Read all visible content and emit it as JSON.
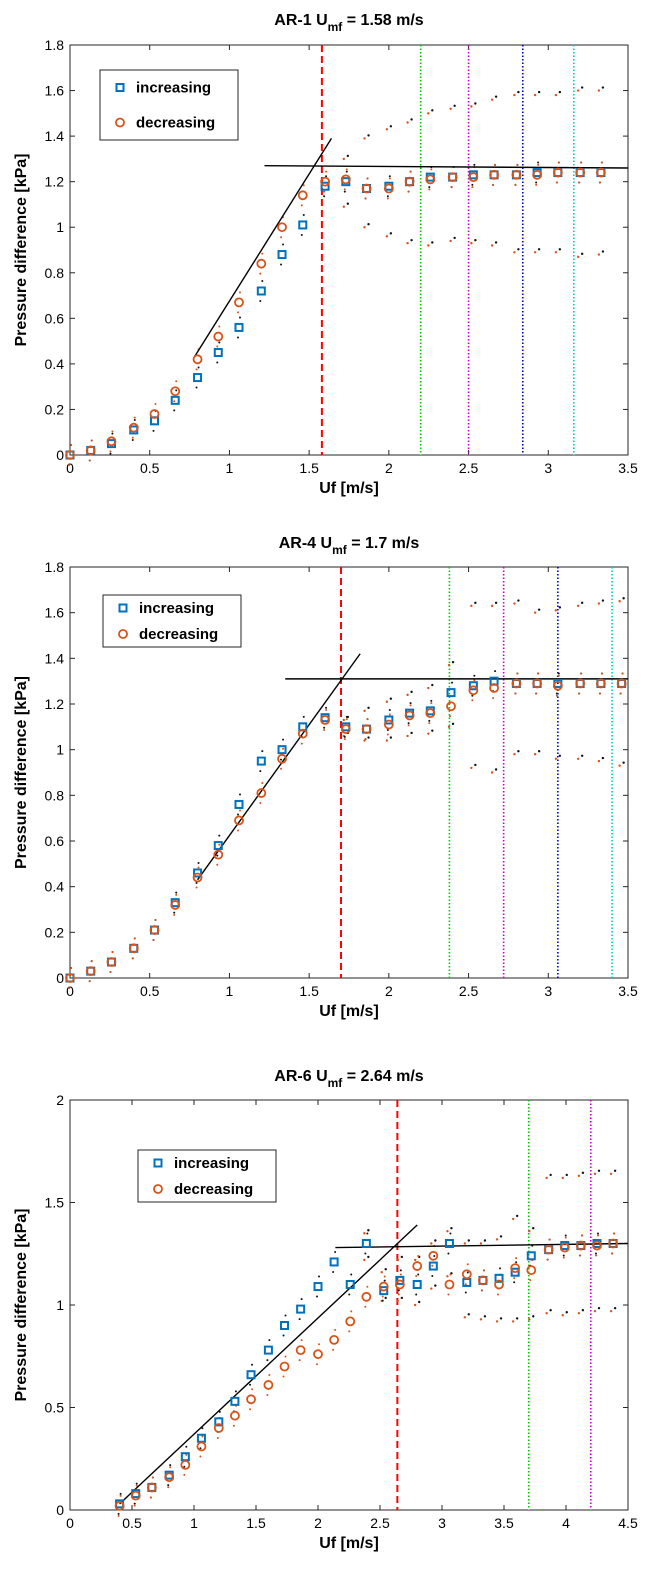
{
  "chart_data": [
    {
      "type": "scatter",
      "title_main": "AR-1 U",
      "title_sub": "mf",
      "title_value": " = 1.58 m/s",
      "xlabel": "Uf [m/s]",
      "ylabel": "Pressure difference [kPa]",
      "xlim": [
        0,
        3.5
      ],
      "ylim": [
        0,
        1.8
      ],
      "xticks": [
        0,
        0.5,
        1,
        1.5,
        2,
        2.5,
        3,
        3.5
      ],
      "xtick_labels": [
        "0",
        "0.5",
        "1",
        "1.5",
        "2",
        "2.5",
        "3",
        "3.5"
      ],
      "yticks": [
        0,
        0.2,
        0.4,
        0.6,
        0.8,
        1,
        1.2,
        1.4,
        1.6,
        1.8
      ],
      "ytick_labels": [
        "0",
        "0.2",
        "0.4",
        "0.6",
        "0.8",
        "1",
        "1.2",
        "1.4",
        "1.6",
        "1.8"
      ],
      "legend": {
        "placement": "top-left",
        "entries": [
          "increasing",
          "decreasing"
        ]
      },
      "series": [
        {
          "name": "increasing",
          "marker": "square",
          "color": "#0072BD",
          "x": [
            0,
            0.13,
            0.26,
            0.4,
            0.53,
            0.66,
            0.8,
            0.93,
            1.06,
            1.2,
            1.33,
            1.46,
            1.6,
            1.73,
            1.86,
            2.0,
            2.13,
            2.26,
            2.4,
            2.53,
            2.66,
            2.8,
            2.93,
            3.06,
            3.2,
            3.33
          ],
          "y": [
            0,
            0.02,
            0.05,
            0.11,
            0.15,
            0.24,
            0.34,
            0.45,
            0.56,
            0.72,
            0.88,
            1.01,
            1.18,
            1.2,
            1.17,
            1.18,
            1.2,
            1.22,
            1.22,
            1.23,
            1.23,
            1.23,
            1.24,
            1.24,
            1.24,
            1.24
          ]
        },
        {
          "name": "decreasing",
          "marker": "circle",
          "color": "#D95319",
          "x": [
            0,
            0.13,
            0.26,
            0.4,
            0.53,
            0.66,
            0.8,
            0.93,
            1.06,
            1.2,
            1.33,
            1.46,
            1.6,
            1.73,
            1.86,
            2.0,
            2.13,
            2.26,
            2.4,
            2.53,
            2.66,
            2.8,
            2.93,
            3.06,
            3.2,
            3.33
          ],
          "y": [
            0,
            0.02,
            0.06,
            0.12,
            0.18,
            0.28,
            0.42,
            0.52,
            0.67,
            0.84,
            1.0,
            1.14,
            1.2,
            1.21,
            1.17,
            1.17,
            1.2,
            1.21,
            1.22,
            1.22,
            1.23,
            1.23,
            1.23,
            1.24,
            1.24,
            1.24
          ]
        }
      ],
      "fluct_bands": [
        {
          "x": [
            1.73,
            1.86,
            2.0,
            2.13,
            2.26,
            2.4,
            2.53,
            2.66,
            2.8,
            2.93,
            3.06,
            3.2,
            3.33
          ],
          "upper": [
            1.3,
            1.39,
            1.43,
            1.46,
            1.5,
            1.52,
            1.53,
            1.56,
            1.58,
            1.58,
            1.58,
            1.6,
            1.6
          ],
          "lower": [
            1.09,
            1.0,
            0.96,
            0.93,
            0.92,
            0.94,
            0.93,
            0.92,
            0.89,
            0.89,
            0.89,
            0.87,
            0.88
          ]
        }
      ],
      "fit_lines": [
        {
          "x": [
            0.78,
            1.64
          ],
          "y": [
            0.43,
            1.39
          ]
        },
        {
          "x": [
            1.22,
            3.5
          ],
          "y": [
            1.27,
            1.26
          ]
        }
      ],
      "vlines": [
        {
          "x": 1.58,
          "color": "#FF0000",
          "style": "dashed"
        },
        {
          "x": 2.2,
          "color": "#00CC00",
          "style": "dotted"
        },
        {
          "x": 2.5,
          "color": "#CC00CC",
          "style": "dotted"
        },
        {
          "x": 2.84,
          "color": "#0000CC",
          "style": "dotted"
        },
        {
          "x": 3.16,
          "color": "#00CCCC",
          "style": "dotted"
        }
      ]
    },
    {
      "type": "scatter",
      "title_main": "AR-4 U",
      "title_sub": "mf",
      "title_value": " = 1.7 m/s",
      "xlabel": "Uf [m/s]",
      "ylabel": "Pressure difference [kPa]",
      "xlim": [
        0,
        3.5
      ],
      "ylim": [
        0,
        1.8
      ],
      "xticks": [
        0,
        0.5,
        1,
        1.5,
        2,
        2.5,
        3,
        3.5
      ],
      "xtick_labels": [
        "0",
        "0.5",
        "1",
        "1.5",
        "2",
        "2.5",
        "3",
        "3.5"
      ],
      "yticks": [
        0,
        0.2,
        0.4,
        0.6,
        0.8,
        1,
        1.2,
        1.4,
        1.6,
        1.8
      ],
      "ytick_labels": [
        "0",
        "0.2",
        "0.4",
        "0.6",
        "0.8",
        "1",
        "1.2",
        "1.4",
        "1.6",
        "1.8"
      ],
      "legend": {
        "placement": "top-left",
        "entries": [
          "increasing",
          "decreasing"
        ]
      },
      "series": [
        {
          "name": "increasing",
          "marker": "square",
          "color": "#0072BD",
          "x": [
            0,
            0.13,
            0.26,
            0.4,
            0.53,
            0.66,
            0.8,
            0.93,
            1.06,
            1.2,
            1.33,
            1.46,
            1.6,
            1.73,
            1.86,
            2.0,
            2.13,
            2.26,
            2.39,
            2.53,
            2.66,
            2.8,
            2.93,
            3.06,
            3.2,
            3.33,
            3.46
          ],
          "y": [
            0,
            0.03,
            0.07,
            0.13,
            0.21,
            0.33,
            0.46,
            0.58,
            0.76,
            0.95,
            1.0,
            1.1,
            1.14,
            1.1,
            1.09,
            1.13,
            1.16,
            1.17,
            1.25,
            1.28,
            1.3,
            1.29,
            1.29,
            1.29,
            1.29,
            1.29,
            1.29
          ]
        },
        {
          "name": "decreasing",
          "marker": "circle",
          "color": "#D95319",
          "x": [
            0,
            0.13,
            0.26,
            0.4,
            0.53,
            0.66,
            0.8,
            0.93,
            1.06,
            1.2,
            1.33,
            1.46,
            1.6,
            1.73,
            1.86,
            2.0,
            2.13,
            2.26,
            2.39,
            2.53,
            2.66,
            2.8,
            2.93,
            3.06,
            3.2,
            3.33,
            3.46
          ],
          "y": [
            0,
            0.03,
            0.07,
            0.13,
            0.21,
            0.32,
            0.44,
            0.54,
            0.69,
            0.81,
            0.96,
            1.07,
            1.13,
            1.09,
            1.09,
            1.11,
            1.15,
            1.16,
            1.19,
            1.26,
            1.27,
            1.29,
            1.29,
            1.28,
            1.29,
            1.29,
            1.29
          ]
        }
      ],
      "fluct_bands": [
        {
          "x": [
            1.73,
            1.86,
            2.0,
            2.13,
            2.26,
            2.39,
            2.53,
            2.66,
            2.8,
            2.93,
            3.06,
            3.2,
            3.33,
            3.46
          ],
          "upper": [
            1.13,
            1.17,
            1.21,
            1.24,
            1.27,
            1.37,
            1.63,
            1.63,
            1.64,
            1.6,
            1.61,
            1.63,
            1.64,
            1.65
          ],
          "lower": [
            1.06,
            1.04,
            1.04,
            1.06,
            1.07,
            1.1,
            0.92,
            0.9,
            0.98,
            0.98,
            0.96,
            0.96,
            0.95,
            0.93
          ]
        }
      ],
      "fit_lines": [
        {
          "x": [
            0.8,
            1.82
          ],
          "y": [
            0.43,
            1.42
          ]
        },
        {
          "x": [
            1.35,
            3.5
          ],
          "y": [
            1.31,
            1.31
          ]
        }
      ],
      "vlines": [
        {
          "x": 1.7,
          "color": "#FF0000",
          "style": "dashed"
        },
        {
          "x": 2.38,
          "color": "#00CC00",
          "style": "dotted"
        },
        {
          "x": 2.72,
          "color": "#CC00CC",
          "style": "dotted"
        },
        {
          "x": 3.06,
          "color": "#0000CC",
          "style": "dotted"
        },
        {
          "x": 3.4,
          "color": "#00CCCC",
          "style": "dotted"
        }
      ]
    },
    {
      "type": "scatter",
      "title_main": "AR-6 U",
      "title_sub": "mf",
      "title_value": " = 2.64 m/s",
      "xlabel": "Uf [m/s]",
      "ylabel": "Pressure difference [kPa]",
      "xlim": [
        0,
        4.5
      ],
      "ylim": [
        0,
        2
      ],
      "xticks": [
        0,
        0.5,
        1,
        1.5,
        2,
        2.5,
        3,
        3.5,
        4,
        4.5
      ],
      "xtick_labels": [
        "0",
        "0.5",
        "1",
        "1.5",
        "2",
        "2.5",
        "3",
        "3.5",
        "4",
        "4.5"
      ],
      "yticks": [
        0,
        0.5,
        1,
        1.5,
        2
      ],
      "ytick_labels": [
        "0",
        "0.5",
        "1",
        "1.5",
        "2"
      ],
      "legend": {
        "placement": "top-left",
        "entries": [
          "increasing",
          "decreasing"
        ]
      },
      "series": [
        {
          "name": "increasing",
          "marker": "square",
          "color": "#0072BD",
          "x": [
            0.4,
            0.53,
            0.66,
            0.8,
            0.93,
            1.06,
            1.2,
            1.33,
            1.46,
            1.6,
            1.73,
            1.86,
            2.0,
            2.13,
            2.26,
            2.39,
            2.53,
            2.66,
            2.8,
            2.93,
            3.06,
            3.2,
            3.33,
            3.46,
            3.59,
            3.72,
            3.86,
            3.99,
            4.12,
            4.25,
            4.38
          ],
          "y": [
            0.03,
            0.08,
            0.11,
            0.17,
            0.26,
            0.35,
            0.43,
            0.53,
            0.66,
            0.78,
            0.9,
            0.98,
            1.09,
            1.21,
            1.1,
            1.3,
            1.07,
            1.12,
            1.1,
            1.19,
            1.3,
            1.11,
            1.12,
            1.13,
            1.16,
            1.24,
            1.27,
            1.29,
            1.29,
            1.3,
            1.3
          ]
        },
        {
          "name": "decreasing",
          "marker": "circle",
          "color": "#D95319",
          "x": [
            0.4,
            0.53,
            0.66,
            0.8,
            0.93,
            1.06,
            1.2,
            1.33,
            1.46,
            1.6,
            1.73,
            1.86,
            2.0,
            2.13,
            2.26,
            2.39,
            2.53,
            2.66,
            2.8,
            2.93,
            3.06,
            3.2,
            3.33,
            3.46,
            3.59,
            3.72,
            3.86,
            3.99,
            4.12,
            4.25,
            4.38
          ],
          "y": [
            0.02,
            0.07,
            0.11,
            0.16,
            0.22,
            0.31,
            0.4,
            0.46,
            0.54,
            0.61,
            0.7,
            0.78,
            0.76,
            0.83,
            0.92,
            1.04,
            1.09,
            1.1,
            1.19,
            1.24,
            1.1,
            1.15,
            1.12,
            1.1,
            1.18,
            1.17,
            1.27,
            1.28,
            1.29,
            1.29,
            1.3
          ]
        }
      ],
      "fluct_bands": [
        {
          "x": [
            2.39,
            2.53,
            2.66,
            2.8,
            2.93,
            3.06,
            3.2,
            3.33,
            3.46,
            3.59,
            3.72,
            3.86,
            3.99,
            4.12,
            4.25,
            4.38
          ],
          "upper": [
            1.35,
            1.16,
            1.22,
            1.22,
            1.3,
            1.36,
            1.3,
            1.3,
            1.32,
            1.42,
            1.36,
            1.62,
            1.62,
            1.63,
            1.64,
            1.64
          ],
          "lower": [
            1.22,
            1.02,
            1.02,
            1.0,
            1.08,
            1.14,
            0.94,
            0.93,
            0.92,
            0.92,
            0.93,
            0.96,
            0.95,
            0.96,
            0.97,
            0.97
          ]
        }
      ],
      "fit_lines": [
        {
          "x": [
            0.4,
            2.8
          ],
          "y": [
            0.03,
            1.39
          ]
        },
        {
          "x": [
            2.14,
            4.5
          ],
          "y": [
            1.28,
            1.3
          ]
        }
      ],
      "vlines": [
        {
          "x": 2.64,
          "color": "#FF0000",
          "style": "dashed"
        },
        {
          "x": 3.7,
          "color": "#00CC00",
          "style": "dotted"
        },
        {
          "x": 4.2,
          "color": "#CC00CC",
          "style": "dotted"
        }
      ]
    }
  ]
}
